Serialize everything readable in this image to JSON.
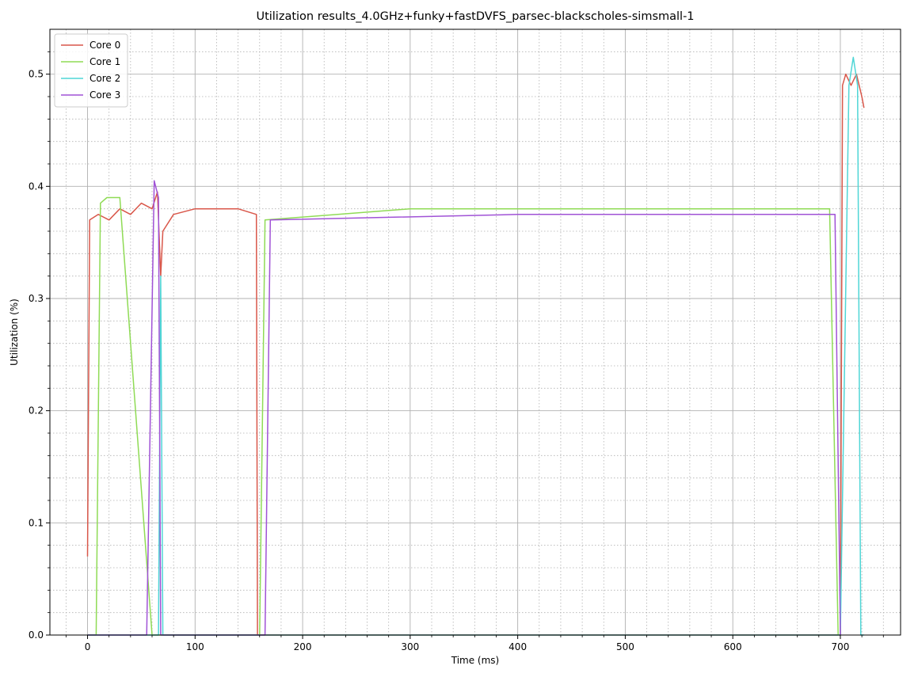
{
  "chart_data": {
    "type": "line",
    "title": "Utilization results_4.0GHz+funky+fastDVFS_parsec-blackscholes-simsmall-1",
    "xlabel": "Time (ms)",
    "ylabel": "Utilization (%)",
    "xlim": [
      -35,
      756
    ],
    "ylim": [
      0,
      0.54
    ],
    "x_ticks": [
      0,
      100,
      200,
      300,
      400,
      500,
      600,
      700
    ],
    "y_ticks": [
      0.0,
      0.1,
      0.2,
      0.3,
      0.4,
      0.5
    ],
    "x_tick_labels": [
      "0",
      "100",
      "200",
      "300",
      "400",
      "500",
      "600",
      "700"
    ],
    "y_tick_labels": [
      "0.0",
      "0.1",
      "0.2",
      "0.3",
      "0.4",
      "0.5"
    ],
    "grid": {
      "major": true,
      "minor": true
    },
    "legend_position": "top-left",
    "series": [
      {
        "name": "Core 0",
        "color": "#d9574a",
        "description_points": [
          [
            0,
            0.07
          ],
          [
            2,
            0.37
          ],
          [
            10,
            0.375
          ],
          [
            20,
            0.37
          ],
          [
            30,
            0.38
          ],
          [
            40,
            0.375
          ],
          [
            50,
            0.385
          ],
          [
            60,
            0.38
          ],
          [
            65,
            0.395
          ],
          [
            68,
            0.32
          ],
          [
            70,
            0.36
          ],
          [
            80,
            0.375
          ],
          [
            100,
            0.38
          ],
          [
            120,
            0.38
          ],
          [
            140,
            0.38
          ],
          [
            157,
            0.375
          ],
          [
            158,
            0
          ],
          [
            700,
            0
          ],
          [
            702,
            0.49
          ],
          [
            705,
            0.5
          ],
          [
            710,
            0.49
          ],
          [
            715,
            0.5
          ],
          [
            720,
            0.48
          ],
          [
            722,
            0.47
          ]
        ]
      },
      {
        "name": "Core 1",
        "color": "#8fdb55",
        "description_points": [
          [
            0,
            0
          ],
          [
            8,
            0
          ],
          [
            12,
            0.385
          ],
          [
            18,
            0.39
          ],
          [
            30,
            0.39
          ],
          [
            60,
            0
          ],
          [
            160,
            0
          ],
          [
            165,
            0.37
          ],
          [
            300,
            0.38
          ],
          [
            500,
            0.38
          ],
          [
            690,
            0.38
          ],
          [
            698,
            0
          ]
        ]
      },
      {
        "name": "Core 2",
        "color": "#4fd6d6",
        "description_points": [
          [
            0,
            0
          ],
          [
            66,
            0
          ],
          [
            68,
            0.32
          ],
          [
            70,
            0
          ],
          [
            700,
            0
          ],
          [
            708,
            0.49
          ],
          [
            712,
            0.515
          ],
          [
            716,
            0.49
          ],
          [
            719,
            0
          ],
          [
            722,
            0
          ]
        ]
      },
      {
        "name": "Core 3",
        "color": "#a052d6",
        "description_points": [
          [
            0,
            0
          ],
          [
            55,
            0
          ],
          [
            62,
            0.405
          ],
          [
            66,
            0.39
          ],
          [
            68,
            0
          ],
          [
            165,
            0
          ],
          [
            170,
            0.37
          ],
          [
            400,
            0.375
          ],
          [
            695,
            0.375
          ],
          [
            700,
            0
          ]
        ]
      }
    ]
  }
}
